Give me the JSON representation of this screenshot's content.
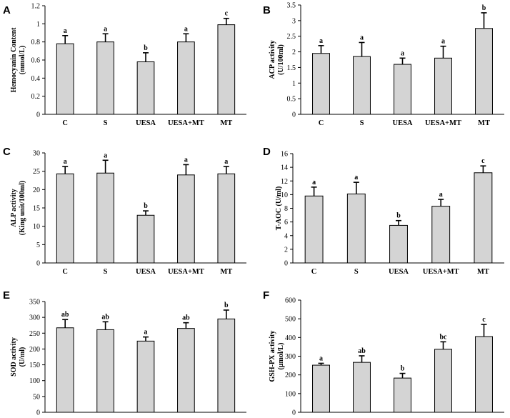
{
  "figure": {
    "panels": [
      "A",
      "B",
      "C",
      "D",
      "E",
      "F"
    ]
  },
  "chart_data": [
    {
      "panel": "A",
      "type": "bar",
      "categories": [
        "C",
        "S",
        "UESA",
        "UESA+MT",
        "MT"
      ],
      "values": [
        0.78,
        0.8,
        0.58,
        0.8,
        0.99
      ],
      "errors": [
        0.09,
        0.09,
        0.1,
        0.09,
        0.07
      ],
      "significance": [
        "a",
        "a",
        "b",
        "a",
        "c"
      ],
      "ylabel": [
        "Hemocyanin Content",
        "(mmol/L)"
      ],
      "ylim": [
        0,
        1.2
      ],
      "yticks": [
        0,
        0.2,
        0.4,
        0.6,
        0.8,
        1,
        1.2
      ],
      "ytick_labels": [
        "0",
        "0.2",
        "0.4",
        "0.6",
        "0.8",
        "1",
        "1.2"
      ]
    },
    {
      "panel": "B",
      "type": "bar",
      "categories": [
        "C",
        "S",
        "UESA",
        "UESA+MT",
        "MT"
      ],
      "values": [
        1.95,
        1.85,
        1.6,
        1.8,
        2.75
      ],
      "errors": [
        0.25,
        0.45,
        0.2,
        0.38,
        0.5
      ],
      "significance": [
        "a",
        "a",
        "a",
        "a",
        "b"
      ],
      "ylabel": [
        "ACP activity",
        "(U/100ml)"
      ],
      "ylim": [
        0,
        3.5
      ],
      "yticks": [
        0,
        0.5,
        1,
        1.5,
        2,
        2.5,
        3,
        3.5
      ],
      "ytick_labels": [
        "0",
        "0.5",
        "1",
        "1.5",
        "2",
        "2.5",
        "3",
        "3.5"
      ]
    },
    {
      "panel": "C",
      "type": "bar",
      "categories": [
        "C",
        "S",
        "UESA",
        "UESA+MT",
        "MT"
      ],
      "values": [
        24.3,
        24.5,
        13.0,
        24.0,
        24.3
      ],
      "errors": [
        2.0,
        3.5,
        1.2,
        2.8,
        2.0
      ],
      "significance": [
        "a",
        "a",
        "b",
        "a",
        "a"
      ],
      "ylabel": [
        "ALP activity",
        "(King unit/100ml)"
      ],
      "ylim": [
        0,
        30
      ],
      "yticks": [
        0,
        5,
        10,
        15,
        20,
        25,
        30
      ],
      "ytick_labels": [
        "0",
        "5",
        "10",
        "15",
        "20",
        "25",
        "30"
      ]
    },
    {
      "panel": "D",
      "type": "bar",
      "categories": [
        "C",
        "S",
        "UESA",
        "UESA+MT",
        "MT"
      ],
      "values": [
        9.8,
        10.1,
        5.5,
        8.3,
        13.2
      ],
      "errors": [
        1.3,
        1.7,
        0.7,
        1.0,
        1.0
      ],
      "significance": [
        "a",
        "a",
        "b",
        "a",
        "c"
      ],
      "ylabel": [
        "T-AOC (U/ml)"
      ],
      "ylim": [
        0,
        16
      ],
      "yticks": [
        0,
        2,
        4,
        6,
        8,
        10,
        12,
        14,
        16
      ],
      "ytick_labels": [
        "0",
        "2",
        "4",
        "6",
        "8",
        "10",
        "12",
        "14",
        "16"
      ]
    },
    {
      "panel": "E",
      "type": "bar",
      "categories": [
        "C",
        "S",
        "UESA",
        "UESA+MT",
        "MT"
      ],
      "values": [
        267,
        261,
        225,
        265,
        295
      ],
      "errors": [
        26,
        25,
        13,
        18,
        28
      ],
      "significance": [
        "ab",
        "ab",
        "a",
        "ab",
        "b"
      ],
      "ylabel": [
        "SOD activity",
        "(U/ml)"
      ],
      "ylim": [
        0,
        350
      ],
      "yticks": [
        0,
        50,
        100,
        150,
        200,
        250,
        300,
        350
      ],
      "ytick_labels": [
        "0",
        "50",
        "100",
        "150",
        "200",
        "250",
        "300",
        "350"
      ]
    },
    {
      "panel": "F",
      "type": "bar",
      "categories": [
        "C",
        "S",
        "UESA",
        "UESA+MT",
        "MT"
      ],
      "values": [
        252,
        267,
        183,
        337,
        405
      ],
      "errors": [
        10,
        35,
        25,
        40,
        65
      ],
      "significance": [
        "a",
        "ab",
        "b",
        "bc",
        "c"
      ],
      "ylabel": [
        "GSH-PX activity",
        "(μmol/L)"
      ],
      "ylim": [
        0,
        600
      ],
      "yticks": [
        0,
        100,
        200,
        300,
        400,
        500,
        600
      ],
      "ytick_labels": [
        "0",
        "100",
        "200",
        "300",
        "400",
        "500",
        "600"
      ]
    }
  ]
}
